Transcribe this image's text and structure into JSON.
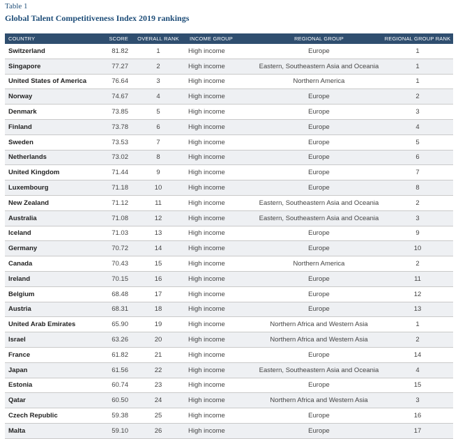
{
  "caption": {
    "label": "Table 1",
    "title": "Global Talent Competitiveness Index 2019 rankings"
  },
  "headers": {
    "country": "COUNTRY",
    "score": "SCORE",
    "overall_rank": "OVERALL RANK",
    "income_group": "INCOME GROUP",
    "regional_group": "REGIONAL GROUP",
    "regional_group_rank": "REGIONAL GROUP RANK"
  },
  "rows": [
    {
      "country": "Switzerland",
      "score": "81.82",
      "rank": "1",
      "income": "High income",
      "region": "Europe",
      "region_rank": "1"
    },
    {
      "country": "Singapore",
      "score": "77.27",
      "rank": "2",
      "income": "High income",
      "region": "Eastern, Southeastern Asia and Oceania",
      "region_rank": "1"
    },
    {
      "country": "United States of America",
      "score": "76.64",
      "rank": "3",
      "income": "High income",
      "region": "Northern America",
      "region_rank": "1"
    },
    {
      "country": "Norway",
      "score": "74.67",
      "rank": "4",
      "income": "High income",
      "region": "Europe",
      "region_rank": "2"
    },
    {
      "country": "Denmark",
      "score": "73.85",
      "rank": "5",
      "income": "High income",
      "region": "Europe",
      "region_rank": "3"
    },
    {
      "country": "Finland",
      "score": "73.78",
      "rank": "6",
      "income": "High income",
      "region": "Europe",
      "region_rank": "4"
    },
    {
      "country": "Sweden",
      "score": "73.53",
      "rank": "7",
      "income": "High income",
      "region": "Europe",
      "region_rank": "5"
    },
    {
      "country": "Netherlands",
      "score": "73.02",
      "rank": "8",
      "income": "High income",
      "region": "Europe",
      "region_rank": "6"
    },
    {
      "country": "United Kingdom",
      "score": "71.44",
      "rank": "9",
      "income": "High income",
      "region": "Europe",
      "region_rank": "7"
    },
    {
      "country": "Luxembourg",
      "score": "71.18",
      "rank": "10",
      "income": "High income",
      "region": "Europe",
      "region_rank": "8"
    },
    {
      "country": "New Zealand",
      "score": "71.12",
      "rank": "11",
      "income": "High income",
      "region": "Eastern, Southeastern Asia and Oceania",
      "region_rank": "2"
    },
    {
      "country": "Australia",
      "score": "71.08",
      "rank": "12",
      "income": "High income",
      "region": "Eastern, Southeastern Asia and Oceania",
      "region_rank": "3"
    },
    {
      "country": "Iceland",
      "score": "71.03",
      "rank": "13",
      "income": "High income",
      "region": "Europe",
      "region_rank": "9"
    },
    {
      "country": "Germany",
      "score": "70.72",
      "rank": "14",
      "income": "High income",
      "region": "Europe",
      "region_rank": "10"
    },
    {
      "country": "Canada",
      "score": "70.43",
      "rank": "15",
      "income": "High income",
      "region": "Northern America",
      "region_rank": "2"
    },
    {
      "country": "Ireland",
      "score": "70.15",
      "rank": "16",
      "income": "High income",
      "region": "Europe",
      "region_rank": "11"
    },
    {
      "country": "Belgium",
      "score": "68.48",
      "rank": "17",
      "income": "High income",
      "region": "Europe",
      "region_rank": "12"
    },
    {
      "country": "Austria",
      "score": "68.31",
      "rank": "18",
      "income": "High income",
      "region": "Europe",
      "region_rank": "13"
    },
    {
      "country": "United Arab Emirates",
      "score": "65.90",
      "rank": "19",
      "income": "High income",
      "region": "Northern Africa and Western Asia",
      "region_rank": "1"
    },
    {
      "country": "Israel",
      "score": "63.26",
      "rank": "20",
      "income": "High income",
      "region": "Northern Africa and Western Asia",
      "region_rank": "2"
    },
    {
      "country": "France",
      "score": "61.82",
      "rank": "21",
      "income": "High income",
      "region": "Europe",
      "region_rank": "14"
    },
    {
      "country": "Japan",
      "score": "61.56",
      "rank": "22",
      "income": "High income",
      "region": "Eastern, Southeastern Asia and Oceania",
      "region_rank": "4"
    },
    {
      "country": "Estonia",
      "score": "60.74",
      "rank": "23",
      "income": "High income",
      "region": "Europe",
      "region_rank": "15"
    },
    {
      "country": "Qatar",
      "score": "60.50",
      "rank": "24",
      "income": "High income",
      "region": "Northern Africa and Western Asia",
      "region_rank": "3"
    },
    {
      "country": "Czech Republic",
      "score": "59.38",
      "rank": "25",
      "income": "High income",
      "region": "Europe",
      "region_rank": "16"
    },
    {
      "country": "Malta",
      "score": "59.10",
      "rank": "26",
      "income": "High income",
      "region": "Europe",
      "region_rank": "17"
    }
  ]
}
